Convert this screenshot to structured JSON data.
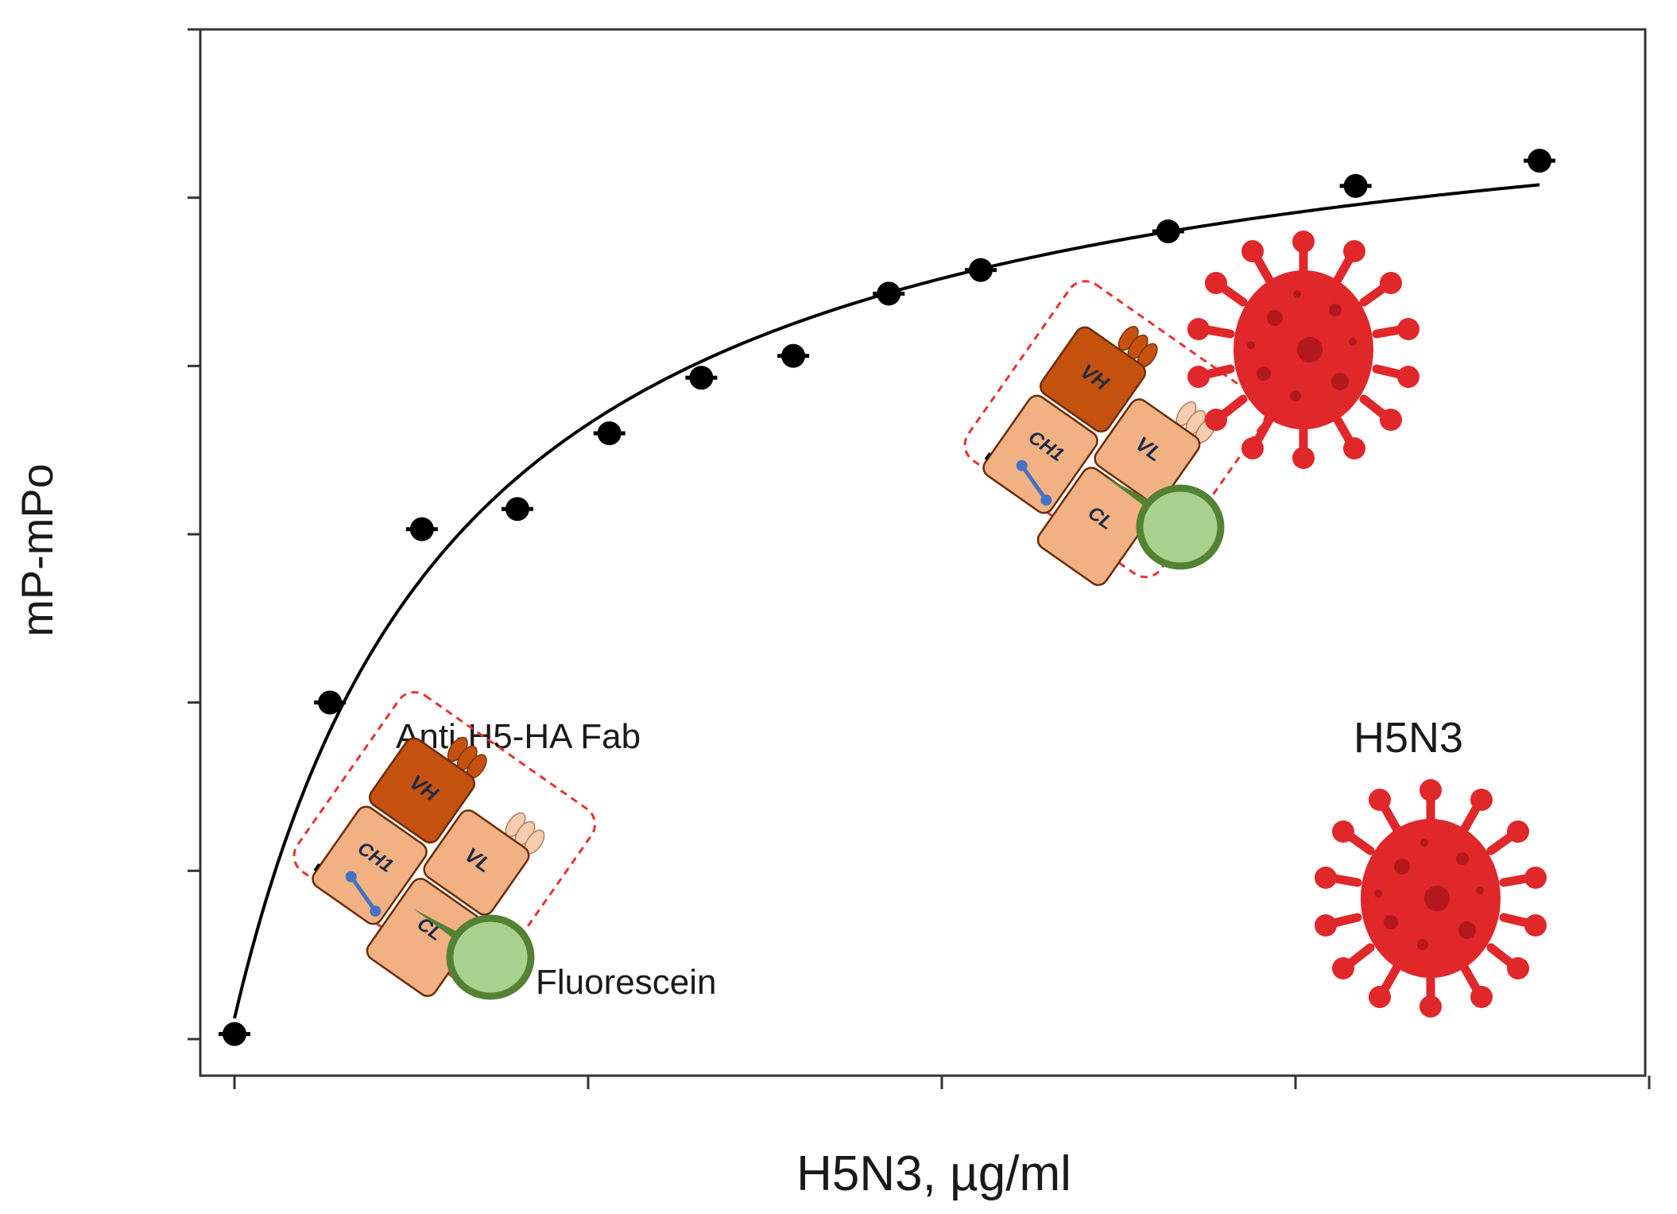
{
  "chart_data": {
    "type": "scatter",
    "title": "",
    "xlabel": "H5N3, µg/ml",
    "ylabel": "mP-mPo",
    "x_tick_labels": [],
    "y_tick_labels": [],
    "xlim": [
      0,
      4
    ],
    "ylim": [
      0,
      6
    ],
    "x_ticks": [
      0,
      1,
      2,
      3,
      4
    ],
    "y_ticks": [
      0,
      1,
      2,
      3,
      4,
      5,
      6
    ],
    "grid": false,
    "legend": "none",
    "series": [
      {
        "marker": "filled-circle",
        "color": "#000000",
        "x": [
          0.0,
          0.27,
          0.53,
          0.8,
          1.06,
          1.32,
          1.58,
          1.85,
          2.11,
          2.64,
          3.17,
          3.69
        ],
        "y": [
          0.03,
          2.0,
          3.03,
          3.15,
          3.6,
          3.93,
          4.06,
          4.43,
          4.57,
          4.8,
          5.07,
          5.22
        ]
      }
    ],
    "fit_curve": {
      "style": "smooth saturating fit",
      "color": "#000000"
    }
  },
  "annotations": {
    "fab_label": "Anti-H5-HA Fab",
    "fluorescein_label": "Fluorescein",
    "virus_label": "H5N3",
    "fab_domains": {
      "vh": "VH",
      "vl": "VL",
      "ch1": "CH1",
      "cl": "CL"
    }
  },
  "colors": {
    "vh": "#c4520e",
    "light_domain": "#f2b183",
    "fluorescein_fill": "#a9d18e",
    "fluorescein_stroke": "#548235",
    "virus": "#e0272a",
    "virus_dark": "#b3181c",
    "dashed_box": "#e8312f",
    "disulfide": "#4472c4"
  },
  "icons": [
    "fab-antibody-icon",
    "fluorescein-icon",
    "virus-icon"
  ]
}
